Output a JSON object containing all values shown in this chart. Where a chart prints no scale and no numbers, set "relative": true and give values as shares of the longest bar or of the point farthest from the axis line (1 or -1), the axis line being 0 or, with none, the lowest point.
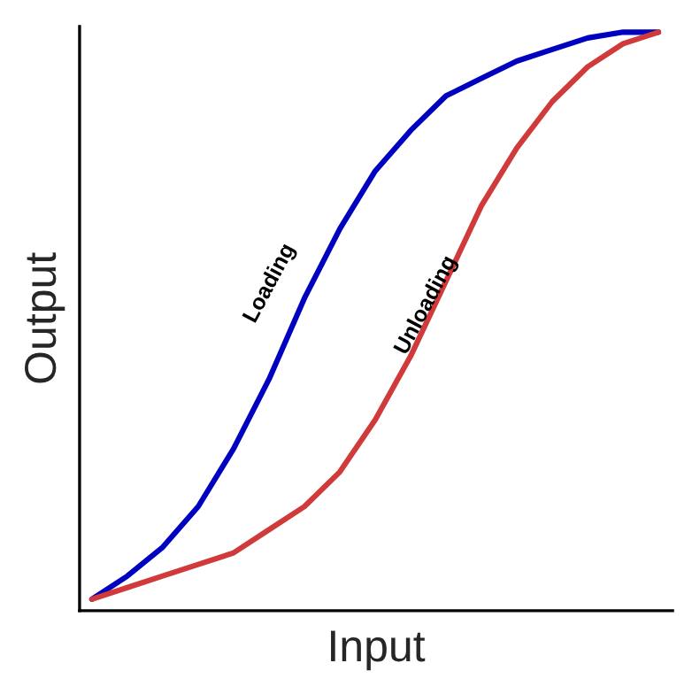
{
  "chart_data": {
    "type": "line",
    "xlabel": "Input",
    "ylabel": "Output",
    "relative": true,
    "categories": [
      null,
      null,
      null,
      null,
      null,
      null,
      null,
      null,
      null,
      null,
      null,
      null,
      null,
      null,
      null,
      null,
      null
    ],
    "series": [
      {
        "name": "Loading",
        "color": "#0000c0",
        "values": [
          0.02,
          0.06,
          0.11,
          0.18,
          0.28,
          0.4,
          0.54,
          0.66,
          0.76,
          0.83,
          0.89,
          0.92,
          0.95,
          0.97,
          0.99,
          1.0,
          1.0
        ]
      },
      {
        "name": "Unloading",
        "color": "#d03a3a",
        "values": [
          0.02,
          0.04,
          0.06,
          0.08,
          0.1,
          0.14,
          0.18,
          0.24,
          0.33,
          0.44,
          0.57,
          0.7,
          0.8,
          0.88,
          0.94,
          0.98,
          1.0
        ]
      }
    ],
    "grid": false,
    "legend": false
  }
}
